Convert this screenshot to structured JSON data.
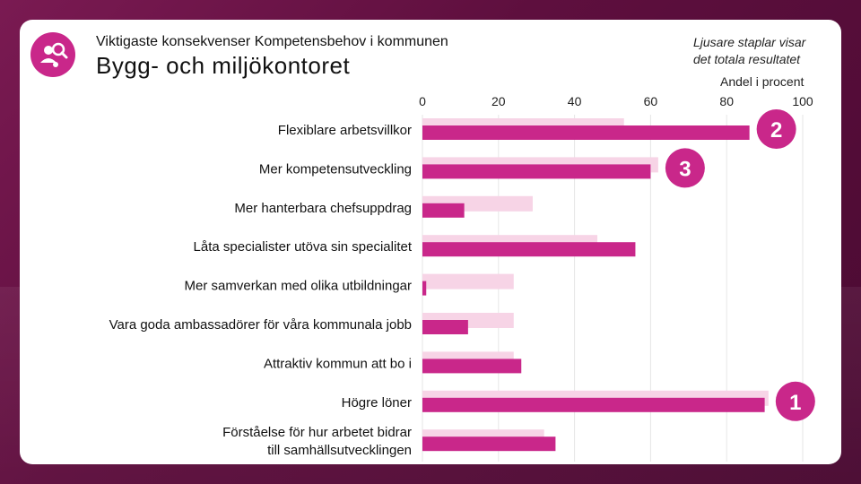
{
  "header": {
    "subtitle": "Viktigaste konsekvenser Kompetensbehov i kommunen",
    "title": "Bygg- och miljökontoret",
    "note_line1": "Ljusare staplar visar",
    "note_line2": "det totala resultatet",
    "unit_label": "Andel i procent"
  },
  "colors": {
    "main_bar": "#c9278a",
    "total_bar": "#f7d4e6",
    "grid": "#e6e6e6",
    "badge": "#c9278a"
  },
  "chart_data": {
    "type": "bar",
    "orientation": "horizontal",
    "xlim": [
      0,
      100
    ],
    "x_ticks": [
      0,
      20,
      40,
      60,
      80,
      100
    ],
    "xlabel": "Andel i procent",
    "categories": [
      "Flexiblare arbetsvillkor",
      "Mer kompetensutveckling",
      "Mer hanterbara chefsuppdrag",
      "Låta specialister utöva sin specialitet",
      "Mer samverkan med olika utbildningar",
      "Vara goda ambassadörer för våra kommunala jobb",
      "Attraktiv kommun att bo i",
      "Högre löner",
      "Förståelse för hur arbetet bidrar till samhällsutvecklingen"
    ],
    "series": [
      {
        "name": "Totala resultatet",
        "values": [
          53,
          62,
          29,
          46,
          24,
          24,
          24,
          91,
          32
        ]
      },
      {
        "name": "Bygg- och miljökontoret",
        "values": [
          86,
          60,
          11,
          56,
          1,
          12,
          26,
          90,
          35
        ]
      }
    ],
    "rank_badges": [
      {
        "category_index": 7,
        "label": "1"
      },
      {
        "category_index": 0,
        "label": "2"
      },
      {
        "category_index": 1,
        "label": "3"
      }
    ]
  }
}
